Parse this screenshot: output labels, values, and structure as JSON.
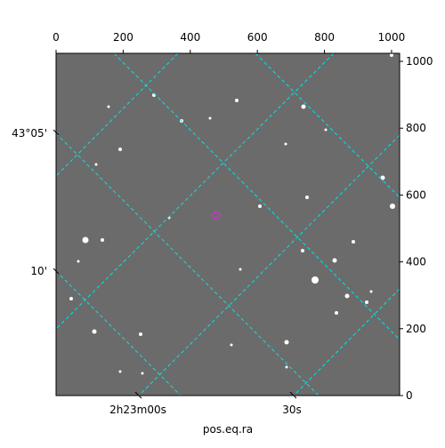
{
  "chart_data": {
    "type": "image",
    "xlabel": "pos.eq.ra",
    "xlim": [
      0,
      1024
    ],
    "xticks": [
      0,
      200,
      400,
      600,
      800,
      1000
    ],
    "ylim": [
      0,
      1024
    ],
    "yticks": [
      0,
      200,
      400,
      600,
      800,
      1000
    ],
    "ra_tick_labels": [
      "2h23m00s",
      "30s"
    ],
    "dec_tick_labels": [
      "43°05'",
      "10'"
    ],
    "grid_color": "#00e5e5",
    "marker_color": "#cc33cc"
  }
}
